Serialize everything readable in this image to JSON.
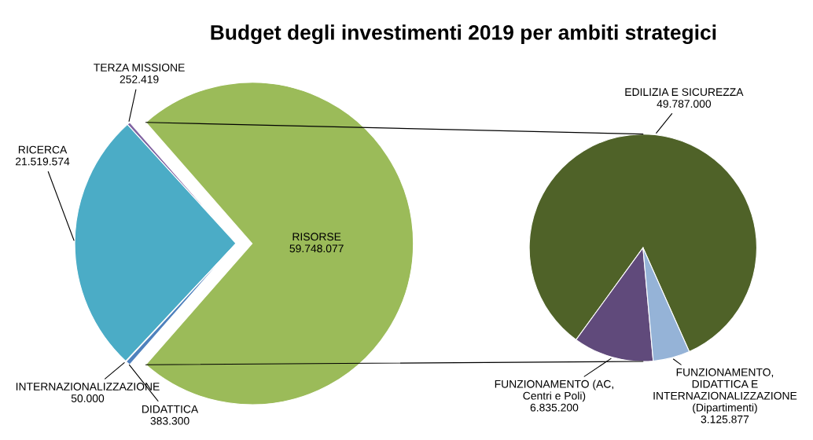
{
  "chart_data": [
    {
      "type": "pie",
      "title": "Budget degli investimenti 2019 per ambiti strategici",
      "categories": [
        "RISORSE",
        "TERZA MISSIONE",
        "RICERCA",
        "INTERNAZIONALIZZAZIONE",
        "DIDATTICA"
      ],
      "values": [
        59748077,
        252419,
        21519574,
        50000,
        383300
      ],
      "value_labels": [
        "59.748.077",
        "252.419",
        "21.519.574",
        "50.000",
        "383.300"
      ],
      "colors": [
        "#9bbb59",
        "#8064a2",
        "#4bacc6",
        "#f79646",
        "#4f81bd"
      ]
    },
    {
      "type": "pie",
      "categories": [
        "EDILIZIA E SICUREZZA",
        "FUNZIONAMENTO (AC, Centri e Poli)",
        "FUNZIONAMENTO, DIDATTICA E INTERNAZIONALIZZAZIONE (Dipartimenti)"
      ],
      "values": [
        49787000,
        6835200,
        3125877
      ],
      "value_labels": [
        "49.787.000",
        "6.835.200",
        "3.125.877"
      ],
      "colors": [
        "#4f6228",
        "#604a7b",
        "#95b3d7"
      ]
    }
  ]
}
